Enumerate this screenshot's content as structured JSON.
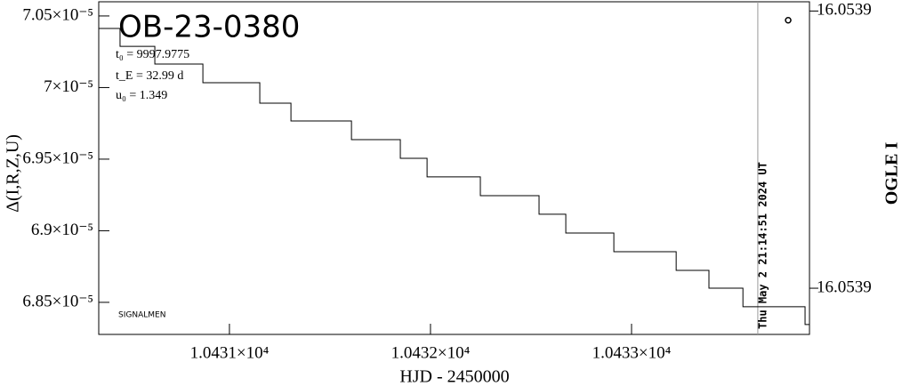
{
  "chart_data": {
    "type": "line",
    "title": "OB-23-0380",
    "annotations": [
      "t₀ = 9997.9775",
      "t_E = 32.99 d",
      "u₀ = 1.349",
      "SIGNALMEN"
    ],
    "time_marker": {
      "x": 10433.628,
      "label": "Thu May  2 21:14:51 2024 UT"
    },
    "xlabel": "HJD - 2450000",
    "ylabel": "Δ(I,R,Z,U)",
    "y2label": "OGLE I",
    "xlim": [
      10430.35,
      10433.885
    ],
    "xticks": [
      {
        "value": 10431,
        "label": "1.0431×10⁴"
      },
      {
        "value": 10432,
        "label": "1.0432×10⁴"
      },
      {
        "value": 10433,
        "label": "1.0433×10⁴"
      }
    ],
    "ylim": [
      7.0599e-05,
      6.8276e-05
    ],
    "yticks": [
      {
        "value": 7.05e-05,
        "label": "7.05×10⁻⁵"
      },
      {
        "value": 7e-05,
        "label": "7×10⁻⁵"
      },
      {
        "value": 6.95e-05,
        "label": "6.95×10⁻⁵"
      },
      {
        "value": 6.9e-05,
        "label": "6.9×10⁻⁵"
      },
      {
        "value": 6.85e-05,
        "label": "6.85×10⁻⁵"
      }
    ],
    "y2lim": [
      16.053922,
      16.05385
    ],
    "y2ticks": [
      {
        "value": 16.05392,
        "label": "16.0539"
      },
      {
        "value": 16.05386,
        "label": "16.0539"
      }
    ],
    "series": [
      {
        "color": "#000000",
        "x": [
          10430.35,
          10430.456,
          10430.629,
          10430.868,
          10431.151,
          10431.306,
          10431.607,
          10431.85,
          10431.983,
          10432.248,
          10432.54,
          10432.673,
          10432.912,
          10433.222,
          10433.385,
          10433.554,
          10433.863,
          10433.885
        ],
        "values": [
          7.0413e-05,
          7.0288e-05,
          7.0164e-05,
          7.0034e-05,
          6.9891e-05,
          6.9767e-05,
          6.9636e-05,
          6.9506e-05,
          6.9376e-05,
          6.9245e-05,
          6.9115e-05,
          6.8984e-05,
          6.8854e-05,
          6.8723e-05,
          6.8599e-05,
          6.8469e-05,
          6.8345e-05,
          6.8345e-05
        ]
      },
      {
        "color": "#000000",
        "axis": "y2",
        "x": [
          10433.779
        ],
        "values": [
          16.053918
        ]
      }
    ]
  }
}
